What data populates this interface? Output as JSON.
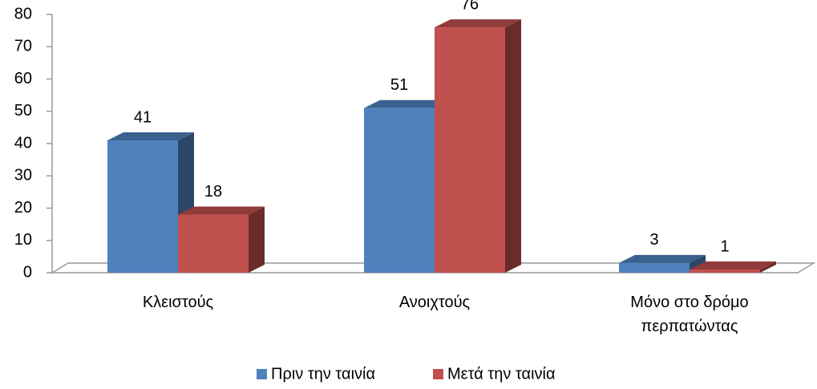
{
  "chart_data": {
    "type": "bar3d",
    "categories": [
      "Κλειστούς",
      "Ανοιχτούς",
      "Μόνο στο δρόμο περπατώντας"
    ],
    "series": [
      {
        "name": "Πριν την ταινία",
        "color": "#4f81bd",
        "values": [
          41,
          51,
          3
        ]
      },
      {
        "name": "Μετά την ταινία",
        "color": "#c0504d",
        "values": [
          18,
          76,
          1
        ]
      }
    ],
    "ylim": [
      0,
      80
    ],
    "yticks": [
      0,
      10,
      20,
      30,
      40,
      50,
      60,
      70,
      80
    ],
    "legend": "bottom"
  }
}
